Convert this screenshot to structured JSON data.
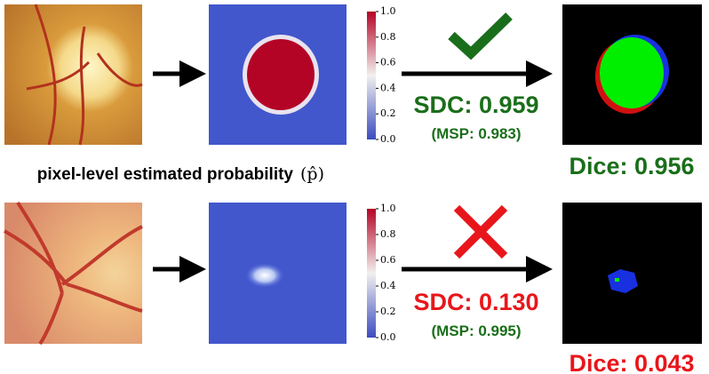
{
  "caption": {
    "label": "pixel-level estimated probability",
    "symbol": "(p̂)"
  },
  "colorbar_ticks": [
    "1.0",
    "0.8",
    "0.6",
    "0.4",
    "0.2",
    "0.0"
  ],
  "rows": [
    {
      "sdc": "SDC: 0.959",
      "msp": "(MSP: 0.983)",
      "dice": "Dice: 0.956"
    },
    {
      "sdc": "SDC: 0.130",
      "msp": "(MSP: 0.995)",
      "dice": "Dice: 0.043"
    }
  ]
}
